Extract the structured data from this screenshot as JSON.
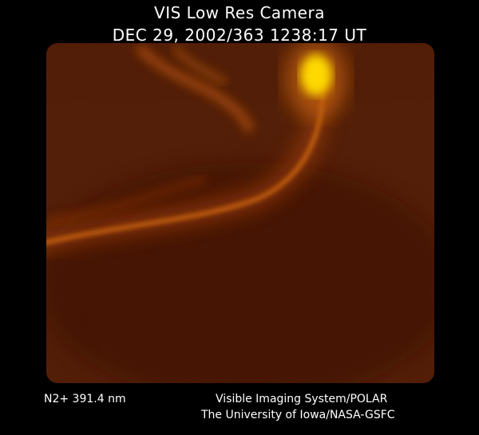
{
  "header": {
    "title": "VIS Low Res Camera",
    "timestamp": "DEC 29, 2002/363 1238:17 UT"
  },
  "image": {
    "subject": "auroral oval",
    "colormap": [
      "#000000",
      "#5a1a04",
      "#b84a08",
      "#ffe000"
    ]
  },
  "footer": {
    "filter": "N2+ 391.4 nm",
    "instrument": "Visible Imaging System/POLAR",
    "credit": "The University of Iowa/NASA-GSFC"
  }
}
